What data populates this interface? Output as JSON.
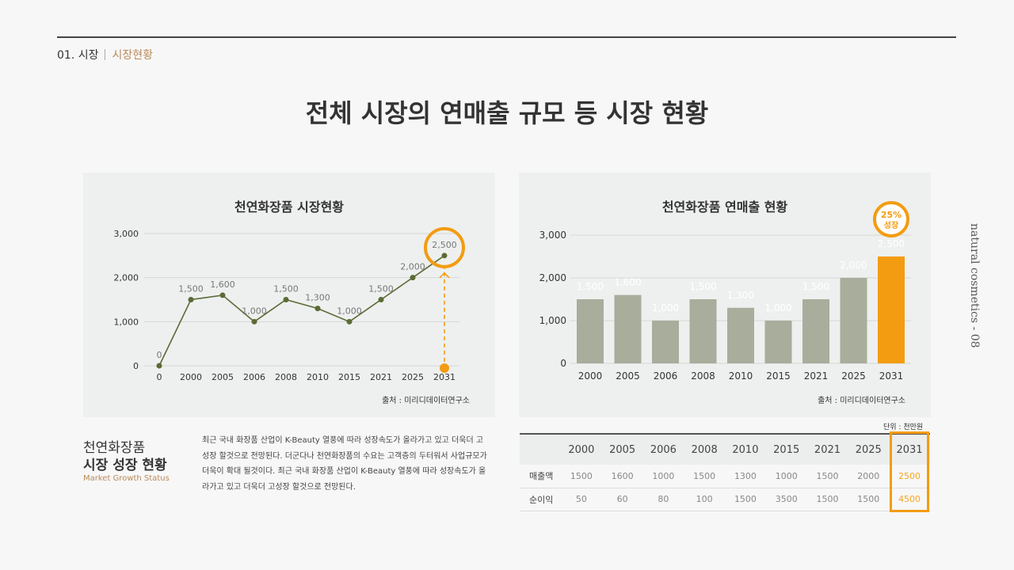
{
  "header": {
    "section": "01. 시장",
    "current": "시장현황"
  },
  "title": "전체 시장의 연매출 규모 등 시장 현황",
  "side_label": "natural cosmetics - 08",
  "colors": {
    "accent": "#f39c12",
    "line": "#5a6b35",
    "bar": "#a8ad9c",
    "brown": "#b98a5c"
  },
  "chart_data": [
    {
      "type": "line",
      "title": "천연화장품 시장현황",
      "categories": [
        "0",
        "2000",
        "2005",
        "2006",
        "2008",
        "2010",
        "2015",
        "2021",
        "2025",
        "2031"
      ],
      "values": [
        0,
        1500,
        1600,
        1000,
        1500,
        1300,
        1000,
        1500,
        2000,
        2500
      ],
      "labels": [
        "0",
        "1,500",
        "1,600",
        "1,000",
        "1,500",
        "1,300",
        "1,000",
        "1,500",
        "2,000",
        "2,500"
      ],
      "yticks": [
        "0",
        "1,000",
        "2,000",
        "3,000"
      ],
      "ylim": [
        0,
        3000
      ],
      "highlight": "2031",
      "source": "출처 : 미리디데이터연구소",
      "grid": true
    },
    {
      "type": "bar",
      "title": "천연화장품 연매출 현황",
      "categories": [
        "2000",
        "2005",
        "2006",
        "2008",
        "2010",
        "2015",
        "2021",
        "2025",
        "2031"
      ],
      "values": [
        1500,
        1600,
        1000,
        1500,
        1300,
        1000,
        1500,
        2000,
        2500
      ],
      "labels": [
        "1,500",
        "1,600",
        "1,000",
        "1,500",
        "1,300",
        "1,000",
        "1,500",
        "2,000",
        "2,500"
      ],
      "yticks": [
        "0",
        "1,000",
        "2,000",
        "3,000"
      ],
      "ylim": [
        0,
        3000
      ],
      "highlight": "2031",
      "badge": [
        "25%",
        "성장"
      ],
      "source": "출처 : 미리디데이터연구소",
      "grid": true
    }
  ],
  "summary": {
    "line1": "천연화장품",
    "line2": "시장 성장 현황",
    "sub": "Market Growth Status",
    "text": "최근 국내 화장품 산업이 K-Beauty 열풍에 따라 성장속도가 올라가고 있고 더욱더 고성장 할것으로 전망된다. 더군다나 천연화장품의 수요는 고객층의 두터워서 사업규모가 더욱이 확대 될것이다. 최근 국내 화장품 산업이 K-Beauty 열풍에 따라 성장속도가 올라가고 있고 더욱더 고성장 할것으로 전망된다."
  },
  "table": {
    "unit": "단위 : 천만원",
    "headers": [
      "2000",
      "2005",
      "2006",
      "2008",
      "2010",
      "2015",
      "2021",
      "2025",
      "2031"
    ],
    "rows": [
      {
        "label": "매출액",
        "values": [
          "1500",
          "1600",
          "1000",
          "1500",
          "1300",
          "1000",
          "1500",
          "2000",
          "2500"
        ]
      },
      {
        "label": "순이익",
        "values": [
          "50",
          "60",
          "80",
          "100",
          "1500",
          "3500",
          "1500",
          "1500",
          "4500"
        ]
      }
    ]
  }
}
